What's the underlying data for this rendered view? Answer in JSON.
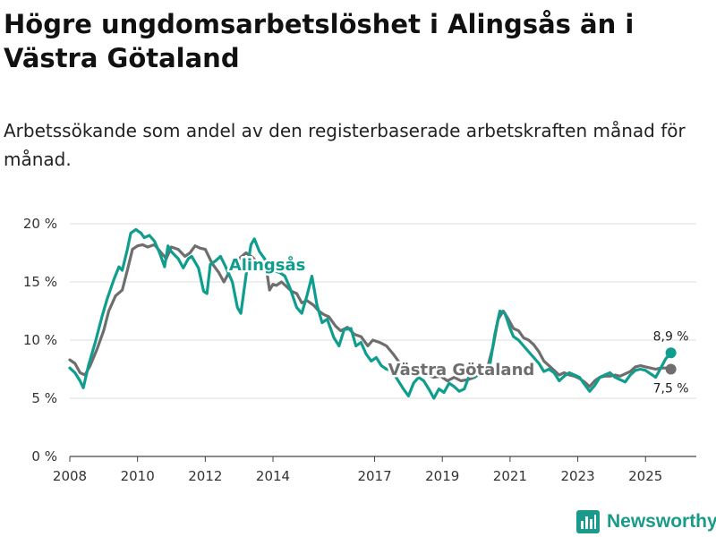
{
  "title": "Högre ungdomsarbetslöshet i Alingsås än i Västra Götaland",
  "subtitle": "Arbetssökande som andel av den registerbaserade arbetskraften månad för månad.",
  "brand": "Newsworthy",
  "colors": {
    "alingsas": "#0f9e8e",
    "vastra": "#6e6e6e",
    "grid": "#dddddd",
    "brand": "#1a9a8a"
  },
  "chart_data": {
    "type": "line",
    "title": "Högre ungdomsarbetslöshet i Alingsås än i Västra Götaland",
    "xlabel": "",
    "ylabel": "",
    "xlim": [
      2008,
      2026.5
    ],
    "ylim": [
      0,
      20
    ],
    "yticks": [
      0,
      5,
      10,
      15,
      20
    ],
    "ytick_labels": [
      "0 %",
      "5 %",
      "10 %",
      "15 %",
      "20 %"
    ],
    "xticks": [
      2008,
      2010,
      2012,
      2014,
      2017,
      2019,
      2021,
      2023,
      2025
    ],
    "xtick_labels": [
      "2008",
      "2010",
      "2012",
      "2014",
      "2017",
      "2019",
      "2021",
      "2023",
      "2025"
    ],
    "grid": true,
    "series": [
      {
        "name": "Alingsås",
        "label": "Alingsås",
        "color": "#0f9e8e",
        "end_label": "8,9 %",
        "points": [
          [
            2008.0,
            7.6
          ],
          [
            2008.15,
            7.2
          ],
          [
            2008.3,
            6.5
          ],
          [
            2008.4,
            5.9
          ],
          [
            2008.55,
            7.8
          ],
          [
            2008.75,
            9.8
          ],
          [
            2008.95,
            12.0
          ],
          [
            2009.1,
            13.5
          ],
          [
            2009.3,
            15.2
          ],
          [
            2009.45,
            16.3
          ],
          [
            2009.55,
            16.0
          ],
          [
            2009.7,
            17.8
          ],
          [
            2009.8,
            19.2
          ],
          [
            2009.95,
            19.5
          ],
          [
            2010.1,
            19.2
          ],
          [
            2010.2,
            18.8
          ],
          [
            2010.35,
            19.0
          ],
          [
            2010.5,
            18.5
          ],
          [
            2010.65,
            17.5
          ],
          [
            2010.8,
            16.3
          ],
          [
            2010.9,
            18.1
          ],
          [
            2011.0,
            17.6
          ],
          [
            2011.2,
            17.0
          ],
          [
            2011.35,
            16.2
          ],
          [
            2011.5,
            17.0
          ],
          [
            2011.6,
            17.2
          ],
          [
            2011.8,
            16.2
          ],
          [
            2011.95,
            14.2
          ],
          [
            2012.05,
            14.0
          ],
          [
            2012.15,
            16.5
          ],
          [
            2012.3,
            16.8
          ],
          [
            2012.45,
            17.2
          ],
          [
            2012.6,
            16.3
          ],
          [
            2012.8,
            15.0
          ],
          [
            2012.95,
            12.8
          ],
          [
            2013.05,
            12.3
          ],
          [
            2013.2,
            15.5
          ],
          [
            2013.35,
            18.2
          ],
          [
            2013.45,
            18.7
          ],
          [
            2013.6,
            17.6
          ],
          [
            2013.75,
            17.0
          ],
          [
            2013.9,
            16.2
          ],
          [
            2014.0,
            16.0
          ],
          [
            2014.2,
            15.8
          ],
          [
            2014.35,
            15.5
          ],
          [
            2014.5,
            14.5
          ],
          [
            2014.7,
            12.8
          ],
          [
            2014.85,
            12.3
          ],
          [
            2015.0,
            13.8
          ],
          [
            2015.15,
            15.5
          ],
          [
            2015.3,
            13.0
          ],
          [
            2015.45,
            11.5
          ],
          [
            2015.6,
            11.8
          ],
          [
            2015.8,
            10.2
          ],
          [
            2015.95,
            9.5
          ],
          [
            2016.1,
            10.9
          ],
          [
            2016.3,
            11.0
          ],
          [
            2016.45,
            9.5
          ],
          [
            2016.6,
            9.8
          ],
          [
            2016.75,
            8.8
          ],
          [
            2016.9,
            8.2
          ],
          [
            2017.05,
            8.5
          ],
          [
            2017.2,
            7.8
          ],
          [
            2017.35,
            7.5
          ],
          [
            2017.5,
            7.4
          ],
          [
            2017.7,
            6.5
          ],
          [
            2017.85,
            5.8
          ],
          [
            2018.0,
            5.2
          ],
          [
            2018.15,
            6.3
          ],
          [
            2018.3,
            6.8
          ],
          [
            2018.45,
            6.5
          ],
          [
            2018.6,
            5.8
          ],
          [
            2018.75,
            5.0
          ],
          [
            2018.9,
            5.8
          ],
          [
            2019.05,
            5.5
          ],
          [
            2019.2,
            6.3
          ],
          [
            2019.35,
            6.0
          ],
          [
            2019.5,
            5.6
          ],
          [
            2019.65,
            5.8
          ],
          [
            2019.8,
            7.0
          ],
          [
            2019.95,
            6.8
          ],
          [
            2020.1,
            7.2
          ],
          [
            2020.25,
            7.5
          ],
          [
            2020.4,
            7.8
          ],
          [
            2020.55,
            10.5
          ],
          [
            2020.7,
            12.5
          ],
          [
            2020.85,
            12.3
          ],
          [
            2021.0,
            11.0
          ],
          [
            2021.1,
            10.3
          ],
          [
            2021.25,
            10.0
          ],
          [
            2021.4,
            9.5
          ],
          [
            2021.55,
            9.0
          ],
          [
            2021.7,
            8.5
          ],
          [
            2021.85,
            8.0
          ],
          [
            2022.0,
            7.3
          ],
          [
            2022.15,
            7.5
          ],
          [
            2022.3,
            7.2
          ],
          [
            2022.45,
            6.5
          ],
          [
            2022.6,
            6.9
          ],
          [
            2022.75,
            7.2
          ],
          [
            2022.9,
            7.0
          ],
          [
            2023.05,
            6.8
          ],
          [
            2023.2,
            6.2
          ],
          [
            2023.35,
            5.6
          ],
          [
            2023.5,
            6.1
          ],
          [
            2023.65,
            6.8
          ],
          [
            2023.8,
            7.0
          ],
          [
            2023.95,
            7.2
          ],
          [
            2024.1,
            6.8
          ],
          [
            2024.25,
            6.6
          ],
          [
            2024.4,
            6.4
          ],
          [
            2024.55,
            7.0
          ],
          [
            2024.7,
            7.4
          ],
          [
            2024.85,
            7.5
          ],
          [
            2025.0,
            7.4
          ],
          [
            2025.15,
            7.1
          ],
          [
            2025.3,
            6.8
          ],
          [
            2025.45,
            7.6
          ],
          [
            2025.6,
            8.4
          ],
          [
            2025.75,
            8.9
          ]
        ]
      },
      {
        "name": "Västra Götaland",
        "label": "Västra Götaland",
        "color": "#6e6e6e",
        "end_label": "7,5 %",
        "points": [
          [
            2008.0,
            8.3
          ],
          [
            2008.15,
            8.0
          ],
          [
            2008.3,
            7.2
          ],
          [
            2008.45,
            7.0
          ],
          [
            2008.6,
            7.8
          ],
          [
            2008.8,
            9.2
          ],
          [
            2009.0,
            10.8
          ],
          [
            2009.15,
            12.5
          ],
          [
            2009.35,
            13.8
          ],
          [
            2009.55,
            14.3
          ],
          [
            2009.7,
            16.0
          ],
          [
            2009.85,
            17.8
          ],
          [
            2010.0,
            18.1
          ],
          [
            2010.15,
            18.2
          ],
          [
            2010.3,
            18.0
          ],
          [
            2010.5,
            18.2
          ],
          [
            2010.7,
            17.5
          ],
          [
            2010.85,
            17.0
          ],
          [
            2011.0,
            18.0
          ],
          [
            2011.2,
            17.8
          ],
          [
            2011.4,
            17.2
          ],
          [
            2011.55,
            17.5
          ],
          [
            2011.7,
            18.1
          ],
          [
            2011.85,
            17.9
          ],
          [
            2012.0,
            17.8
          ],
          [
            2012.2,
            16.6
          ],
          [
            2012.4,
            15.8
          ],
          [
            2012.55,
            15.0
          ],
          [
            2012.7,
            15.8
          ],
          [
            2012.85,
            16.8
          ],
          [
            2013.0,
            17.0
          ],
          [
            2013.2,
            17.5
          ],
          [
            2013.4,
            17.1
          ],
          [
            2013.6,
            16.5
          ],
          [
            2013.8,
            16.2
          ],
          [
            2013.9,
            14.3
          ],
          [
            2014.0,
            14.8
          ],
          [
            2014.1,
            14.7
          ],
          [
            2014.25,
            15.0
          ],
          [
            2014.4,
            14.6
          ],
          [
            2014.55,
            14.2
          ],
          [
            2014.7,
            14.0
          ],
          [
            2014.85,
            13.2
          ],
          [
            2015.0,
            13.4
          ],
          [
            2015.2,
            13.0
          ],
          [
            2015.35,
            12.5
          ],
          [
            2015.5,
            12.2
          ],
          [
            2015.65,
            12.0
          ],
          [
            2015.85,
            11.2
          ],
          [
            2016.0,
            10.8
          ],
          [
            2016.2,
            11.1
          ],
          [
            2016.4,
            10.5
          ],
          [
            2016.6,
            10.3
          ],
          [
            2016.8,
            9.5
          ],
          [
            2016.95,
            10.0
          ],
          [
            2017.15,
            9.8
          ],
          [
            2017.35,
            9.5
          ],
          [
            2017.55,
            8.8
          ],
          [
            2017.75,
            8.0
          ],
          [
            2017.95,
            7.6
          ],
          [
            2018.15,
            7.2
          ],
          [
            2018.35,
            7.2
          ],
          [
            2018.55,
            7.0
          ],
          [
            2018.75,
            6.8
          ],
          [
            2018.95,
            6.9
          ],
          [
            2019.15,
            6.5
          ],
          [
            2019.35,
            6.8
          ],
          [
            2019.55,
            6.5
          ],
          [
            2019.75,
            6.6
          ],
          [
            2019.95,
            6.8
          ],
          [
            2020.15,
            7.2
          ],
          [
            2020.35,
            7.8
          ],
          [
            2020.5,
            9.5
          ],
          [
            2020.65,
            11.8
          ],
          [
            2020.8,
            12.5
          ],
          [
            2020.95,
            11.8
          ],
          [
            2021.1,
            11.0
          ],
          [
            2021.25,
            10.8
          ],
          [
            2021.4,
            10.2
          ],
          [
            2021.55,
            10.0
          ],
          [
            2021.7,
            9.6
          ],
          [
            2021.85,
            9.0
          ],
          [
            2022.0,
            8.2
          ],
          [
            2022.15,
            7.8
          ],
          [
            2022.3,
            7.4
          ],
          [
            2022.45,
            7.0
          ],
          [
            2022.6,
            7.2
          ],
          [
            2022.75,
            7.0
          ],
          [
            2022.9,
            6.9
          ],
          [
            2023.05,
            6.7
          ],
          [
            2023.2,
            6.4
          ],
          [
            2023.35,
            6.0
          ],
          [
            2023.5,
            6.5
          ],
          [
            2023.65,
            6.8
          ],
          [
            2023.8,
            6.9
          ],
          [
            2023.95,
            6.9
          ],
          [
            2024.1,
            7.0
          ],
          [
            2024.25,
            6.9
          ],
          [
            2024.4,
            7.1
          ],
          [
            2024.55,
            7.3
          ],
          [
            2024.7,
            7.7
          ],
          [
            2024.85,
            7.8
          ],
          [
            2025.0,
            7.7
          ],
          [
            2025.15,
            7.6
          ],
          [
            2025.3,
            7.5
          ],
          [
            2025.45,
            7.6
          ],
          [
            2025.6,
            7.6
          ],
          [
            2025.75,
            7.5
          ]
        ]
      }
    ]
  }
}
